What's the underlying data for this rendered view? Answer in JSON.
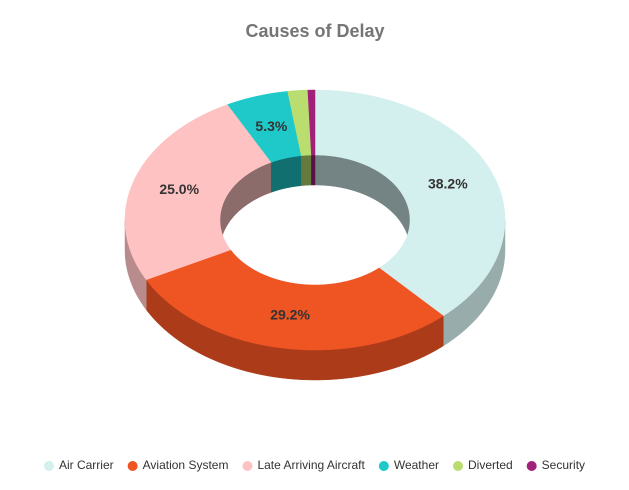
{
  "chart_data": {
    "type": "donut3d",
    "title": "Causes of Delay",
    "categories": [
      "Air Carrier",
      "Aviation System",
      "Late Arriving Aircraft",
      "Weather",
      "Diverted",
      "Security"
    ],
    "values": [
      38.2,
      29.2,
      25.0,
      5.3,
      1.7,
      0.6
    ],
    "value_labels": [
      "38.2%",
      "29.2%",
      "25.0%",
      "5.3%",
      null,
      null
    ],
    "colors": [
      "#d3efee",
      "#ef5423",
      "#ffc2c2",
      "#1fc9c9",
      "#b9dd6f",
      "#a0207a"
    ],
    "legend": "bottom"
  }
}
